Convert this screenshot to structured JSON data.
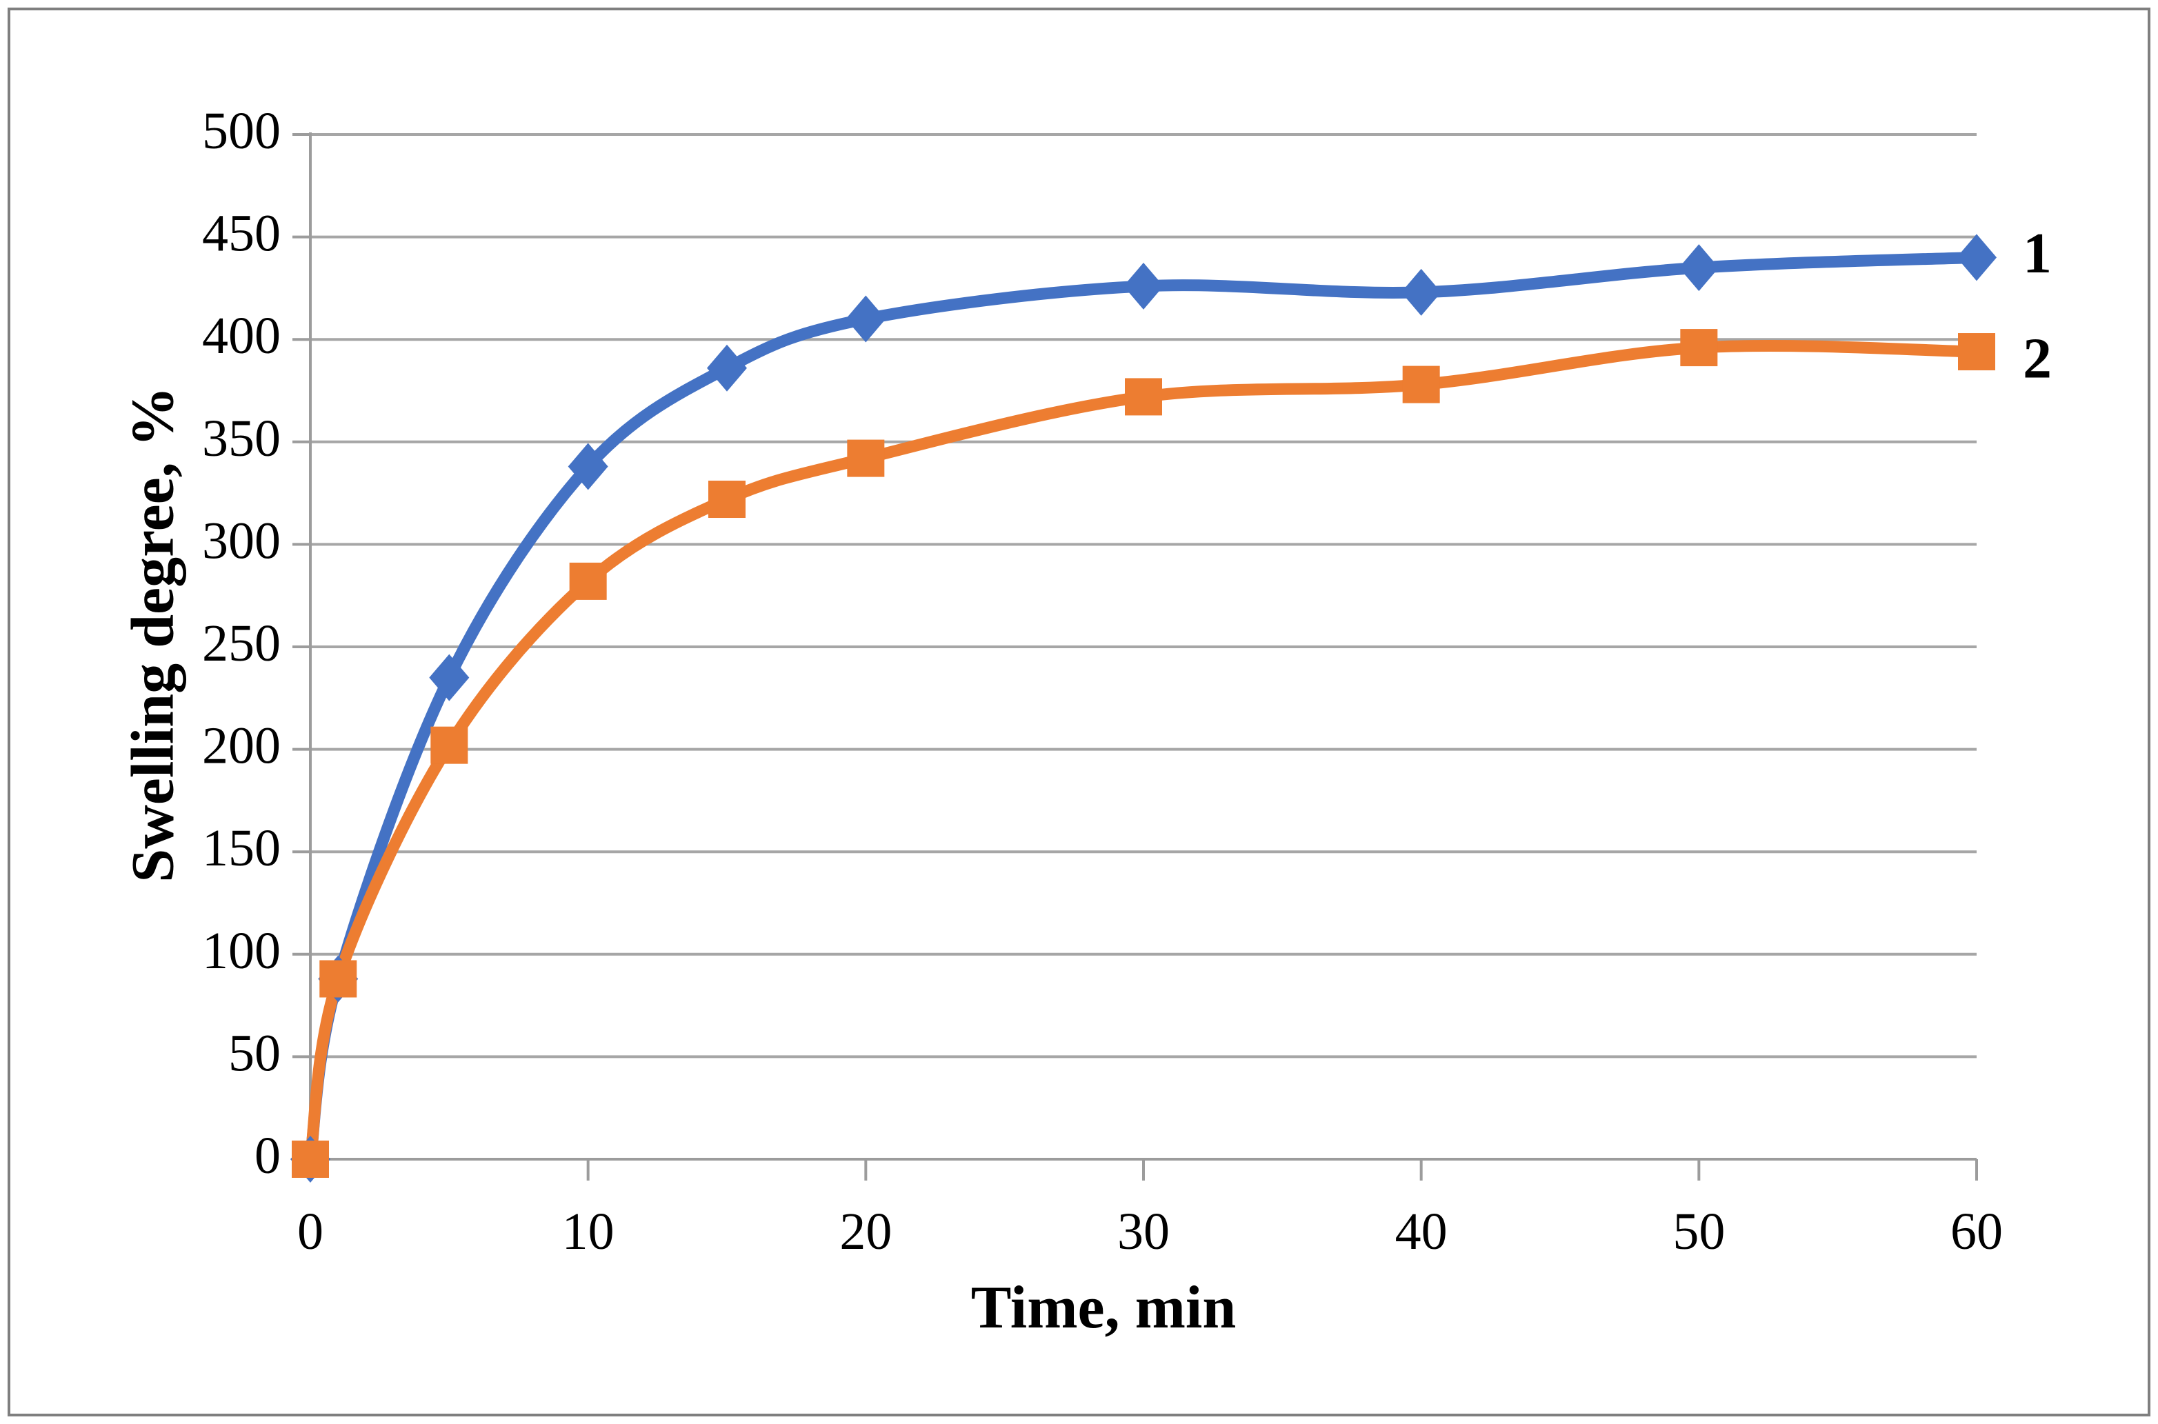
{
  "figure": {
    "background": "#ffffff",
    "border_color": "#7f7f7f"
  },
  "chart_data": {
    "type": "line",
    "title": "",
    "xlabel": "Time, min",
    "ylabel": "Swelling degree, %",
    "x": [
      0,
      1,
      5,
      10,
      15,
      20,
      30,
      40,
      50,
      60
    ],
    "series": [
      {
        "name": "1",
        "color": "#4472C4",
        "marker": "diamond",
        "smooth": true,
        "values": [
          0,
          88,
          235,
          338,
          386,
          410,
          426,
          423,
          435,
          440
        ]
      },
      {
        "name": "2",
        "color": "#ED7D31",
        "marker": "square",
        "smooth": true,
        "values": [
          0,
          88,
          202,
          282,
          322,
          342,
          372,
          378,
          396,
          394
        ]
      }
    ],
    "xlim": [
      0,
      60
    ],
    "ylim": [
      0,
      500
    ],
    "xticks": [
      0,
      10,
      20,
      30,
      40,
      50,
      60
    ],
    "yticks": [
      0,
      50,
      100,
      150,
      200,
      250,
      300,
      350,
      400,
      450,
      500
    ],
    "grid": "horizontal",
    "legend_position": "right-end-of-lines",
    "colors": {
      "gridline": "#a6a6a6",
      "axis": "#9c9c9c",
      "tick": "#9c9c9c",
      "text": "#000000"
    }
  }
}
